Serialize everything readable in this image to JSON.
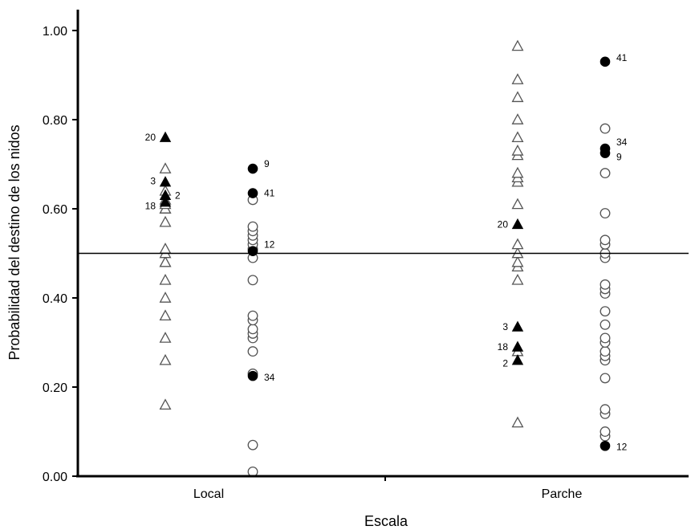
{
  "chart_data": {
    "type": "scatter",
    "xlabel": "Escala",
    "ylabel": "Probabilidad del destino de los nidos",
    "ylim": [
      0,
      1.0
    ],
    "yticks": [
      "0.00",
      "0.20",
      "0.40",
      "0.60",
      "0.80",
      "1.00"
    ],
    "categories": [
      "Local",
      "Parche"
    ],
    "reference_line": 0.5,
    "grid": false,
    "legend": "none",
    "series": [
      {
        "category": "Local",
        "marker": "triangle-open",
        "values": [
          0.16,
          0.26,
          0.31,
          0.36,
          0.4,
          0.44,
          0.48,
          0.48,
          0.5,
          0.51,
          0.57,
          0.6,
          0.6,
          0.61,
          0.62,
          0.64,
          0.69
        ]
      },
      {
        "category": "Local",
        "marker": "triangle-filled",
        "values": [
          0.76,
          0.66,
          0.63,
          0.615
        ],
        "labels": [
          "20",
          "3",
          "2",
          "18"
        ]
      },
      {
        "category": "Local",
        "marker": "circle-open",
        "values": [
          0.01,
          0.07,
          0.23,
          0.28,
          0.31,
          0.32,
          0.33,
          0.35,
          0.36,
          0.44,
          0.49,
          0.51,
          0.52,
          0.53,
          0.54,
          0.55,
          0.56,
          0.62
        ]
      },
      {
        "category": "Local",
        "marker": "circle-filled",
        "values": [
          0.69,
          0.635,
          0.505,
          0.225
        ],
        "labels": [
          "9",
          "41",
          "12",
          "34"
        ]
      },
      {
        "category": "Parche",
        "marker": "triangle-open",
        "values": [
          0.12,
          0.28,
          0.44,
          0.47,
          0.48,
          0.5,
          0.52,
          0.61,
          0.66,
          0.67,
          0.68,
          0.72,
          0.73,
          0.76,
          0.8,
          0.85,
          0.89,
          0.965
        ]
      },
      {
        "category": "Parche",
        "marker": "triangle-filled",
        "values": [
          0.565,
          0.335,
          0.29,
          0.26
        ],
        "labels": [
          "20",
          "3",
          "18",
          "2"
        ]
      },
      {
        "category": "Parche",
        "marker": "circle-open",
        "values": [
          0.09,
          0.1,
          0.14,
          0.15,
          0.22,
          0.26,
          0.27,
          0.28,
          0.3,
          0.31,
          0.34,
          0.37,
          0.41,
          0.42,
          0.43,
          0.49,
          0.5,
          0.52,
          0.53,
          0.59,
          0.68,
          0.78
        ]
      },
      {
        "category": "Parche",
        "marker": "circle-filled",
        "values": [
          0.93,
          0.735,
          0.725,
          0.068
        ],
        "labels": [
          "41",
          "34",
          "9",
          "12"
        ]
      }
    ]
  }
}
